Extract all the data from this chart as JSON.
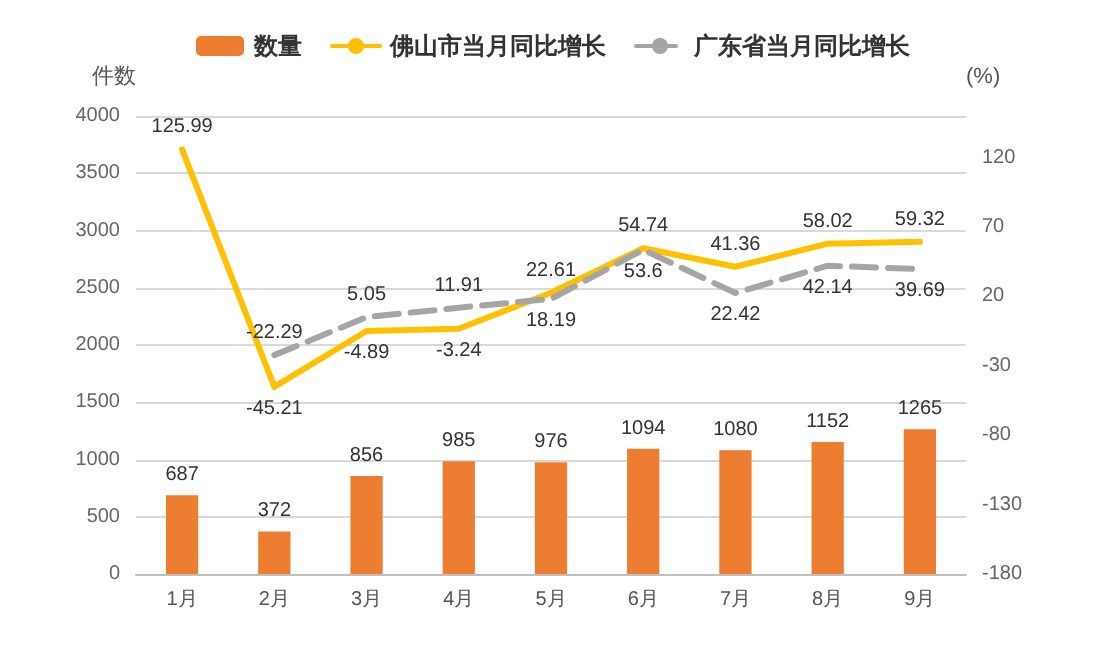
{
  "chart_data": {
    "type": "bar",
    "ylabel": "件数",
    "y2label": "(%)",
    "categories": [
      "1月",
      "2月",
      "3月",
      "4月",
      "5月",
      "6月",
      "7月",
      "8月",
      "9月"
    ],
    "series": [
      {
        "name": "数量",
        "color": "#ed7d31",
        "values": [
          687,
          372,
          856,
          985,
          976,
          1094,
          1080,
          1152,
          1265
        ]
      },
      {
        "name": "佛山市当月同比增长",
        "type": "line",
        "axis": "y2",
        "color": "#ffc000",
        "line_style": "solid",
        "values": [
          125.99,
          -45.21,
          -4.89,
          -3.24,
          22.61,
          54.74,
          41.36,
          58.02,
          59.32
        ]
      },
      {
        "name": "广东省当月同比增长",
        "type": "line",
        "axis": "y2",
        "color": "#a5a5a5",
        "line_style": "dashed",
        "values": [
          null,
          -22.29,
          5.05,
          11.91,
          18.19,
          53.6,
          22.42,
          42.14,
          39.69
        ]
      }
    ],
    "ylim": [
      0,
      4000
    ],
    "yticks": [
      0,
      500,
      1000,
      1500,
      2000,
      2500,
      3000,
      3500,
      4000
    ],
    "y2lim": [
      -180,
      150
    ],
    "y2ticks": [
      -180,
      -130,
      -80,
      -30,
      20,
      70,
      120
    ],
    "grid": "y",
    "legend": "top",
    "marker": "none",
    "data_labels": true
  }
}
